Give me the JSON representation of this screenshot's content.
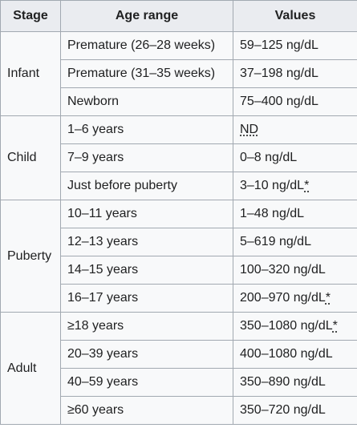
{
  "table": {
    "headers": [
      "Stage",
      "Age range",
      "Values"
    ],
    "groups": [
      {
        "stage": "Infant",
        "rows": [
          {
            "age": "Premature (26–28 weeks)",
            "value": "59–125 ng/dL",
            "note": ""
          },
          {
            "age": "Premature (31–35 weeks)",
            "value": "37–198 ng/dL",
            "note": ""
          },
          {
            "age": "Newborn",
            "value": "75–400 ng/dL",
            "note": ""
          }
        ]
      },
      {
        "stage": "Child",
        "rows": [
          {
            "age": "1–6 years",
            "value": "ND",
            "note": ""
          },
          {
            "age": "7–9 years",
            "value": "0–8 ng/dL",
            "note": ""
          },
          {
            "age": "Just before puberty",
            "value": "3–10 ng/dL",
            "note": "*"
          }
        ]
      },
      {
        "stage": "Puberty",
        "rows": [
          {
            "age": "10–11 years",
            "value": "1–48 ng/dL",
            "note": ""
          },
          {
            "age": "12–13 years",
            "value": "5–619 ng/dL",
            "note": ""
          },
          {
            "age": "14–15 years",
            "value": "100–320 ng/dL",
            "note": ""
          },
          {
            "age": "16–17 years",
            "value": "200–970 ng/dL",
            "note": "*"
          }
        ]
      },
      {
        "stage": "Adult",
        "rows": [
          {
            "age": "≥18 years",
            "value": "350–1080 ng/dL",
            "note": "*"
          },
          {
            "age": "20–39 years",
            "value": "400–1080 ng/dL",
            "note": ""
          },
          {
            "age": "40–59 years",
            "value": "350–890 ng/dL",
            "note": ""
          },
          {
            "age": "≥60 years",
            "value": "350–720 ng/dL",
            "note": ""
          }
        ]
      }
    ]
  }
}
